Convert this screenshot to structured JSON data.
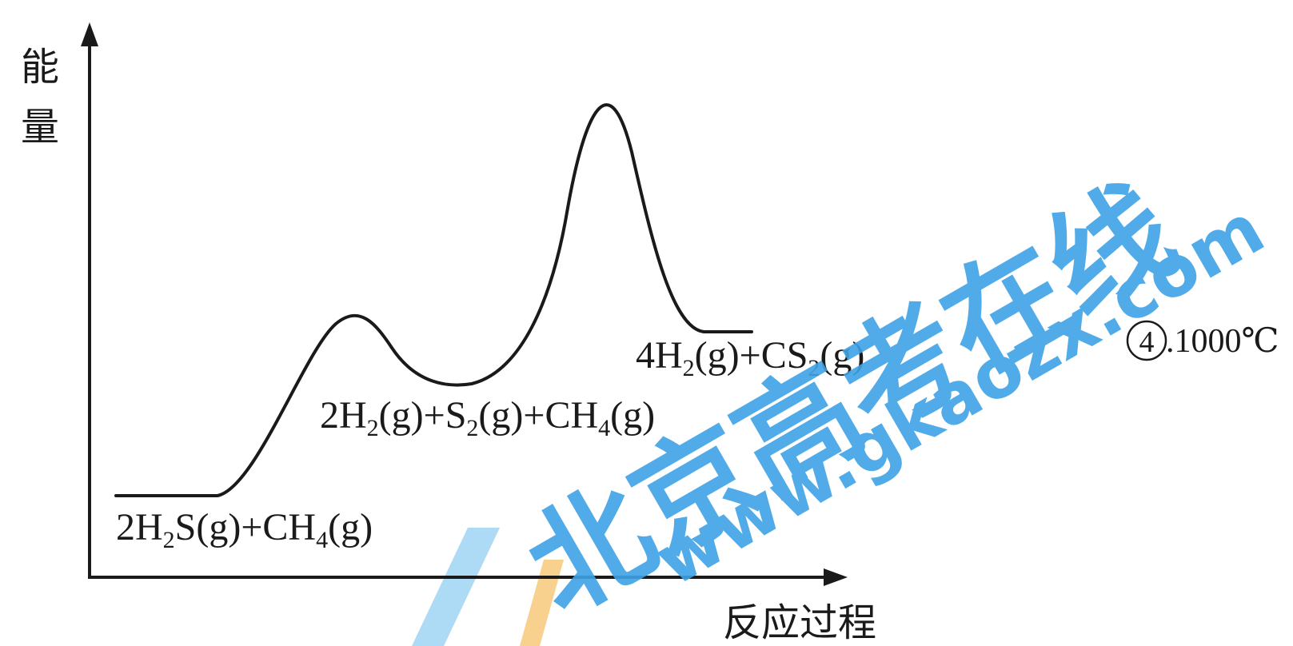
{
  "y_axis_label": {
    "line1": "能",
    "line2": "量"
  },
  "x_axis_label": "反应过程",
  "states": {
    "reactants": {
      "p1": "2H",
      "s1": "2",
      "p2": "S(g)+CH",
      "s2": "4",
      "p3": "(g)"
    },
    "intermediate": {
      "p1": "2H",
      "s1": "2",
      "p2": "(g)+S",
      "s2": "2",
      "p3": "(g)+CH",
      "s3": "4",
      "p4": "(g)"
    },
    "products": {
      "p1": "4H",
      "s1": "2",
      "p2": "(g)+CS",
      "s2": "2",
      "p3": "(g)"
    }
  },
  "answer_note": {
    "circled_number": "4",
    "text": ".1000℃"
  },
  "watermark": {
    "text": "北京高考在线",
    "url": "www.gkaozx.com"
  },
  "colors": {
    "ink": "#1a1a1a",
    "watermark_blue": "#3fa3e6",
    "watermark_light_blue": "#9fd3f2",
    "watermark_orange": "#f7c97a"
  }
}
